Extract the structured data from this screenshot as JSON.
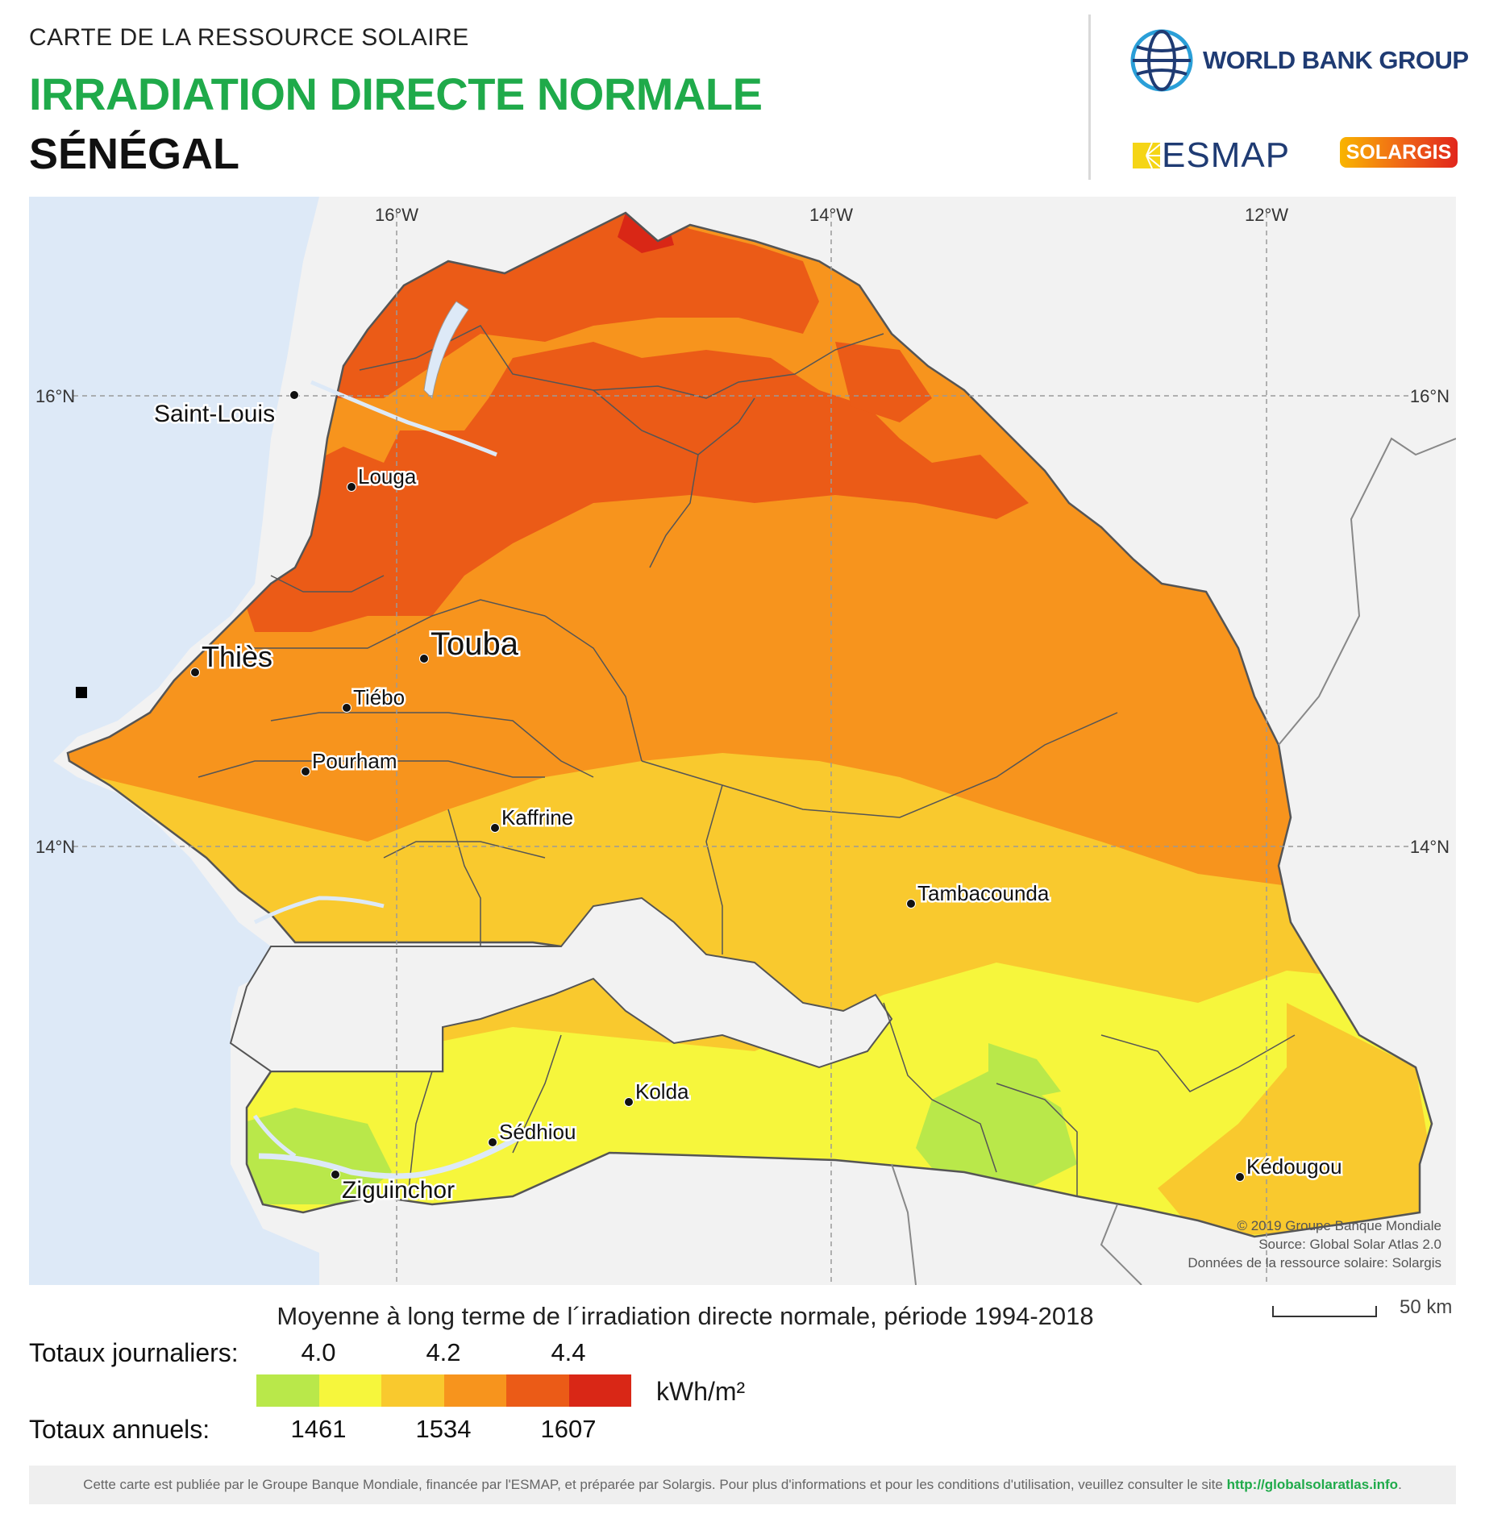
{
  "header": {
    "kicker": "CARTE DE LA RESSOURCE SOLAIRE",
    "title": "IRRADIATION DIRECTE NORMALE",
    "country": "SÉNÉGAL"
  },
  "logos": {
    "world_bank": "WORLD BANK GROUP",
    "esmap": "ESMAP",
    "solargis": "SOLARGIS"
  },
  "graticule": {
    "lon_labels": [
      "16°W",
      "14°W",
      "12°W"
    ],
    "lat_labels": [
      "16°N",
      "14°N"
    ]
  },
  "places": [
    {
      "name": "Saint-Louis"
    },
    {
      "name": "Louga"
    },
    {
      "name": "Thiès"
    },
    {
      "name": "Touba"
    },
    {
      "name": "Tiébo"
    },
    {
      "name": "Pourham"
    },
    {
      "name": "Kaffrine"
    },
    {
      "name": "Tambacounda"
    },
    {
      "name": "Kolda"
    },
    {
      "name": "Sédhiou"
    },
    {
      "name": "Ziguinchor"
    },
    {
      "name": "Kédougou"
    }
  ],
  "credits": [
    "© 2019 Groupe Banque Mondiale",
    "Source: Global Solar Atlas 2.0",
    "Données de la ressource solaire: Solargis"
  ],
  "scale": {
    "label": "50 km"
  },
  "legend": {
    "title": "Moyenne à long terme de l´irradiation directe normale, période 1994-2018",
    "daily_label": "Totaux journaliers:",
    "annual_label": "Totaux annuels:",
    "daily_ticks": [
      "4.0",
      "4.2",
      "4.4"
    ],
    "annual_ticks": [
      "1461",
      "1534",
      "1607"
    ],
    "unit": "kWh/m²",
    "colors": [
      "#b9e84a",
      "#f6f63c",
      "#f9c92e",
      "#f7941d",
      "#eb5b17",
      "#d92716"
    ]
  },
  "footer": {
    "text": "Cette carte est publiée par le Groupe Banque Mondiale, financée par l'ESMAP, et préparée par Solargis. Pour plus d'informations et pour les conditions d'utilisation, veuillez consulter le site ",
    "link": "http://globalsolaratlas.info",
    "end": "."
  }
}
